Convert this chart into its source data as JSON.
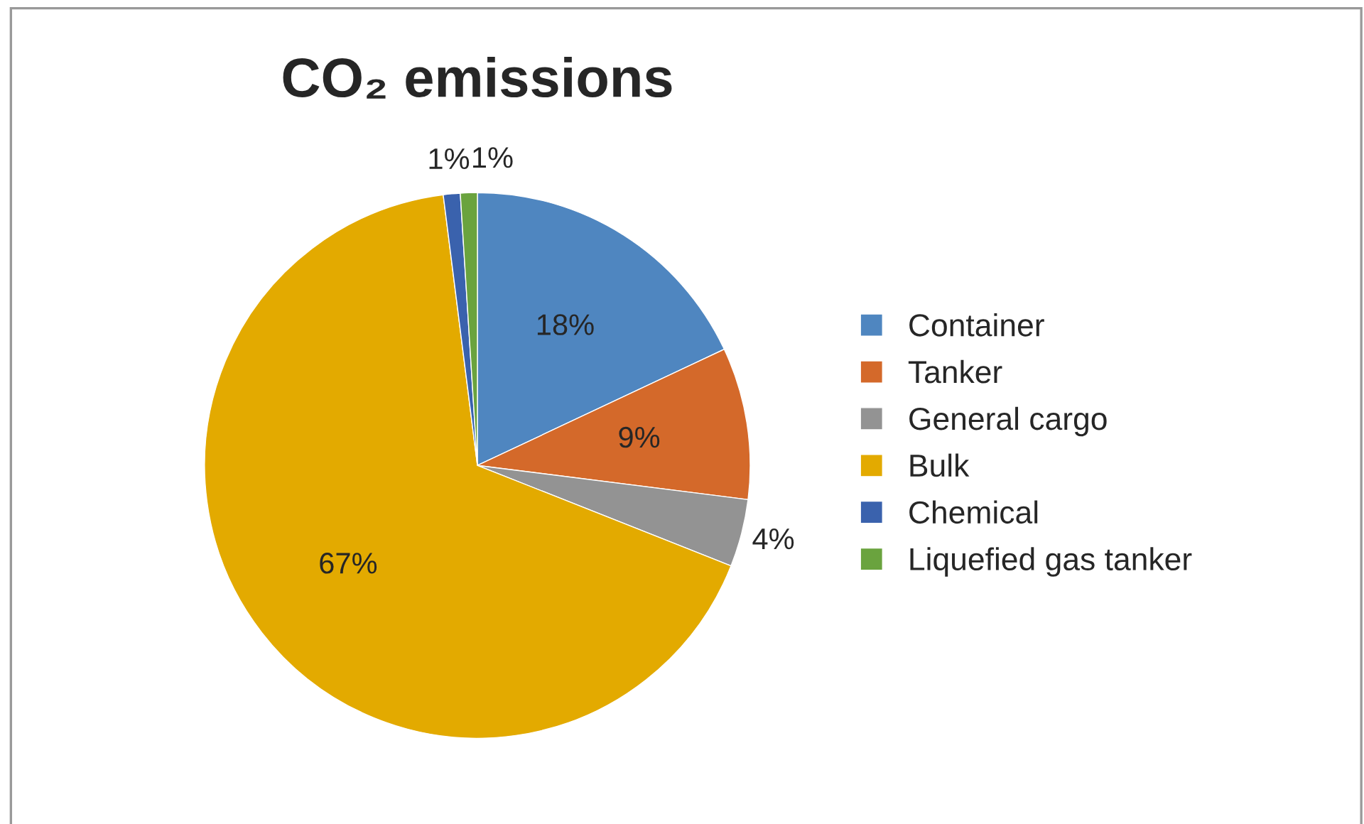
{
  "chart_data": {
    "type": "pie",
    "title": "CO₂ emissions",
    "categories": [
      "Container",
      "Tanker",
      "General cargo",
      "Bulk",
      "Chemical",
      "Liquefied gas tanker"
    ],
    "values": [
      18,
      9,
      4,
      67,
      1,
      1
    ],
    "colors": [
      "#4f86c0",
      "#d4692a",
      "#939393",
      "#e3aa00",
      "#3a62ad",
      "#6aa33e"
    ],
    "value_labels": [
      "18%",
      "9%",
      "4%",
      "67%",
      "1%",
      "1%"
    ],
    "legend": "right"
  }
}
